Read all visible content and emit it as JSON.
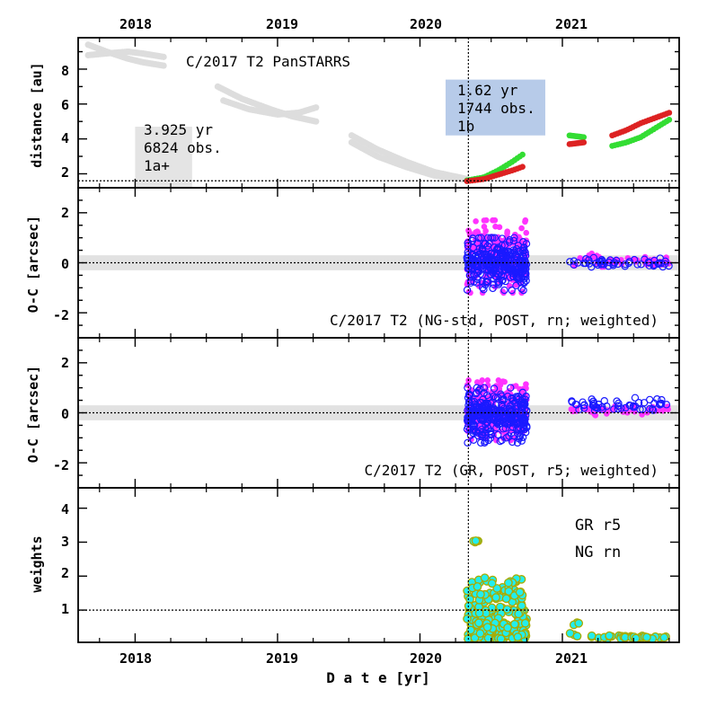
{
  "chart_data": [
    {
      "panel": "distance",
      "type": "scatter",
      "ylabel": "distance [au]",
      "ylim": [
        1.2,
        9.8
      ],
      "yticks": [
        2,
        4,
        6,
        8
      ],
      "hline": 1.6,
      "title": "C/2017 T2 PanSTARRS",
      "boxes": [
        {
          "lines": [
            "3.925 yr",
            "6824 obs.",
            "1a+"
          ],
          "color": "#e4e4e4",
          "x0": 2018.0,
          "x1": 2018.4,
          "y0": 1.2,
          "y1": 4.7
        },
        {
          "lines": [
            "1.62 yr",
            "1744 obs.",
            "1b"
          ],
          "color": "#b7cbe9",
          "x0": 2020.18,
          "x1": 2020.88,
          "y0": 4.2,
          "y1": 7.4
        }
      ],
      "series": [
        {
          "name": "pre-fit arc (grey)",
          "color": "#dddddd",
          "segments": [
            {
              "x": [
                2017.67,
                2017.8,
                2017.95,
                2018.05,
                2018.2
              ],
              "y": [
                9.4,
                9.0,
                8.6,
                8.4,
                8.2
              ]
            },
            {
              "x": [
                2017.67,
                2017.8,
                2017.95,
                2018.05,
                2018.2
              ],
              "y": [
                8.8,
                8.9,
                9.0,
                8.9,
                8.7
              ]
            },
            {
              "x": [
                2018.58,
                2018.75,
                2018.95,
                2019.1,
                2019.27
              ],
              "y": [
                7.0,
                6.3,
                5.7,
                5.3,
                5.0
              ]
            },
            {
              "x": [
                2018.62,
                2018.8,
                2019.0,
                2019.15,
                2019.27
              ],
              "y": [
                6.2,
                5.7,
                5.4,
                5.5,
                5.8
              ]
            },
            {
              "x": [
                2019.52,
                2019.7,
                2019.9,
                2020.1,
                2020.33
              ],
              "y": [
                4.2,
                3.4,
                2.7,
                2.1,
                1.7
              ]
            },
            {
              "x": [
                2019.52,
                2019.7,
                2019.9,
                2020.1,
                2020.33
              ],
              "y": [
                3.8,
                3.0,
                2.4,
                1.9,
                1.65
              ]
            }
          ]
        },
        {
          "name": "heliocentric distance (green)",
          "color": "#33dd33",
          "segments": [
            {
              "x": [
                2020.33,
                2020.45,
                2020.55,
                2020.65,
                2020.72
              ],
              "y": [
                1.62,
                1.8,
                2.2,
                2.7,
                3.1
              ]
            },
            {
              "x": [
                2021.05,
                2021.15
              ],
              "y": [
                4.2,
                4.1
              ]
            },
            {
              "x": [
                2021.35,
                2021.45,
                2021.55,
                2021.65,
                2021.75
              ],
              "y": [
                3.6,
                3.8,
                4.1,
                4.6,
                5.1
              ]
            }
          ]
        },
        {
          "name": "geocentric distance (red)",
          "color": "#dd2222",
          "segments": [
            {
              "x": [
                2020.33,
                2020.45,
                2020.55,
                2020.65,
                2020.72
              ],
              "y": [
                1.58,
                1.7,
                1.95,
                2.2,
                2.4
              ]
            },
            {
              "x": [
                2021.05,
                2021.15
              ],
              "y": [
                3.7,
                3.8
              ]
            },
            {
              "x": [
                2021.35,
                2021.45,
                2021.55,
                2021.65,
                2021.75
              ],
              "y": [
                4.2,
                4.5,
                4.9,
                5.2,
                5.5
              ]
            }
          ]
        }
      ]
    },
    {
      "panel": "oc-ng",
      "type": "scatter",
      "ylabel": "O-C [arcsec]",
      "ylim": [
        -3.0,
        3.0
      ],
      "yticks": [
        -2,
        0,
        2
      ],
      "band": [
        -0.3,
        0.3
      ],
      "annotation": "C/2017 T2 (NG-std, POST, rn; weighted)",
      "clusters": [
        {
          "color": "#ff33ff",
          "filled": true,
          "x": [
            2020.33,
            2020.75
          ],
          "y": [
            -1.2,
            1.7
          ],
          "n": 260
        },
        {
          "color": "#1a1aff",
          "filled": false,
          "x": [
            2020.33,
            2020.75
          ],
          "y": [
            -1.1,
            1.0
          ],
          "n": 320
        },
        {
          "color": "#ff33ff",
          "filled": true,
          "x": [
            2021.05,
            2021.75
          ],
          "y": [
            -0.2,
            0.4
          ],
          "n": 45
        },
        {
          "color": "#1a1aff",
          "filled": false,
          "x": [
            2021.05,
            2021.75
          ],
          "y": [
            -0.2,
            0.2
          ],
          "n": 55
        }
      ]
    },
    {
      "panel": "oc-gr",
      "type": "scatter",
      "ylabel": "O-C [arcsec]",
      "ylim": [
        -3.0,
        3.0
      ],
      "yticks": [
        -2,
        0,
        2
      ],
      "band": [
        -0.3,
        0.3
      ],
      "annotation": "C/2017 T2 (GR, POST, r5; weighted)",
      "clusters": [
        {
          "color": "#ff33ff",
          "filled": true,
          "x": [
            2020.33,
            2020.75
          ],
          "y": [
            -1.1,
            1.3
          ],
          "n": 260
        },
        {
          "color": "#1a1aff",
          "filled": false,
          "x": [
            2020.33,
            2020.75
          ],
          "y": [
            -1.2,
            1.0
          ],
          "n": 320
        },
        {
          "color": "#ff33ff",
          "filled": true,
          "x": [
            2021.05,
            2021.75
          ],
          "y": [
            -0.1,
            0.3
          ],
          "n": 45
        },
        {
          "color": "#1a1aff",
          "filled": false,
          "x": [
            2021.05,
            2021.75
          ],
          "y": [
            0.1,
            0.6
          ],
          "n": 55
        }
      ]
    },
    {
      "panel": "weights",
      "type": "scatter",
      "ylabel": "weights",
      "ylim": [
        0.05,
        4.6
      ],
      "yticks": [
        1,
        2,
        3,
        4
      ],
      "hline": 1.0,
      "legend": [
        {
          "label": "GR r5",
          "color": "#aaaa00"
        },
        {
          "label": "NG rn",
          "color": "#22eeee"
        }
      ],
      "clusters": [
        {
          "x": [
            2020.33,
            2020.75
          ],
          "y": [
            0.15,
            1.95
          ],
          "n": 260
        },
        {
          "x": [
            2020.37,
            2020.42
          ],
          "y": [
            3.0,
            3.05
          ],
          "n": 6
        },
        {
          "x": [
            2021.05,
            2021.12
          ],
          "y": [
            0.2,
            0.7
          ],
          "n": 6
        },
        {
          "x": [
            2021.2,
            2021.75
          ],
          "y": [
            0.15,
            0.25
          ],
          "n": 40
        }
      ]
    }
  ],
  "shared": {
    "xlabel": "D a t e [yr]",
    "xlim": [
      2017.6,
      2021.82
    ],
    "xticks": [
      "2018",
      "2019",
      "2020",
      "2021"
    ],
    "vline": 2020.34
  }
}
